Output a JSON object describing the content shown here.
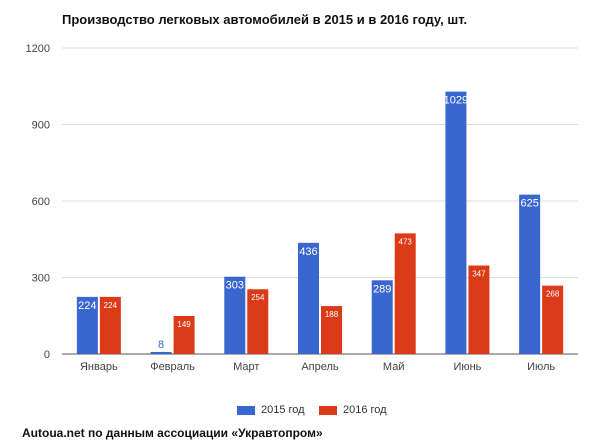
{
  "chart_data": {
    "type": "bar",
    "title": "Производство легковых автомобилей в 2015 и в 2016 году, шт.",
    "xlabel": "",
    "ylabel": "",
    "ylim": [
      0,
      1200
    ],
    "yticks": [
      0,
      300,
      600,
      900,
      1200
    ],
    "grid": true,
    "legend_position": "bottom",
    "categories": [
      "Январь",
      "Февраль",
      "Март",
      "Апрель",
      "Май",
      "Июнь",
      "Июль"
    ],
    "series": [
      {
        "name": "2015 год",
        "color": "#3a66cf",
        "values": [
          224,
          8,
          303,
          436,
          289,
          1029,
          625
        ]
      },
      {
        "name": "2016 год",
        "color": "#dc3b1a",
        "values": [
          224,
          149,
          254,
          188,
          473,
          347,
          268
        ]
      }
    ]
  },
  "source_note": "Autoua.net по данным ассоциации «Укравтопром»"
}
